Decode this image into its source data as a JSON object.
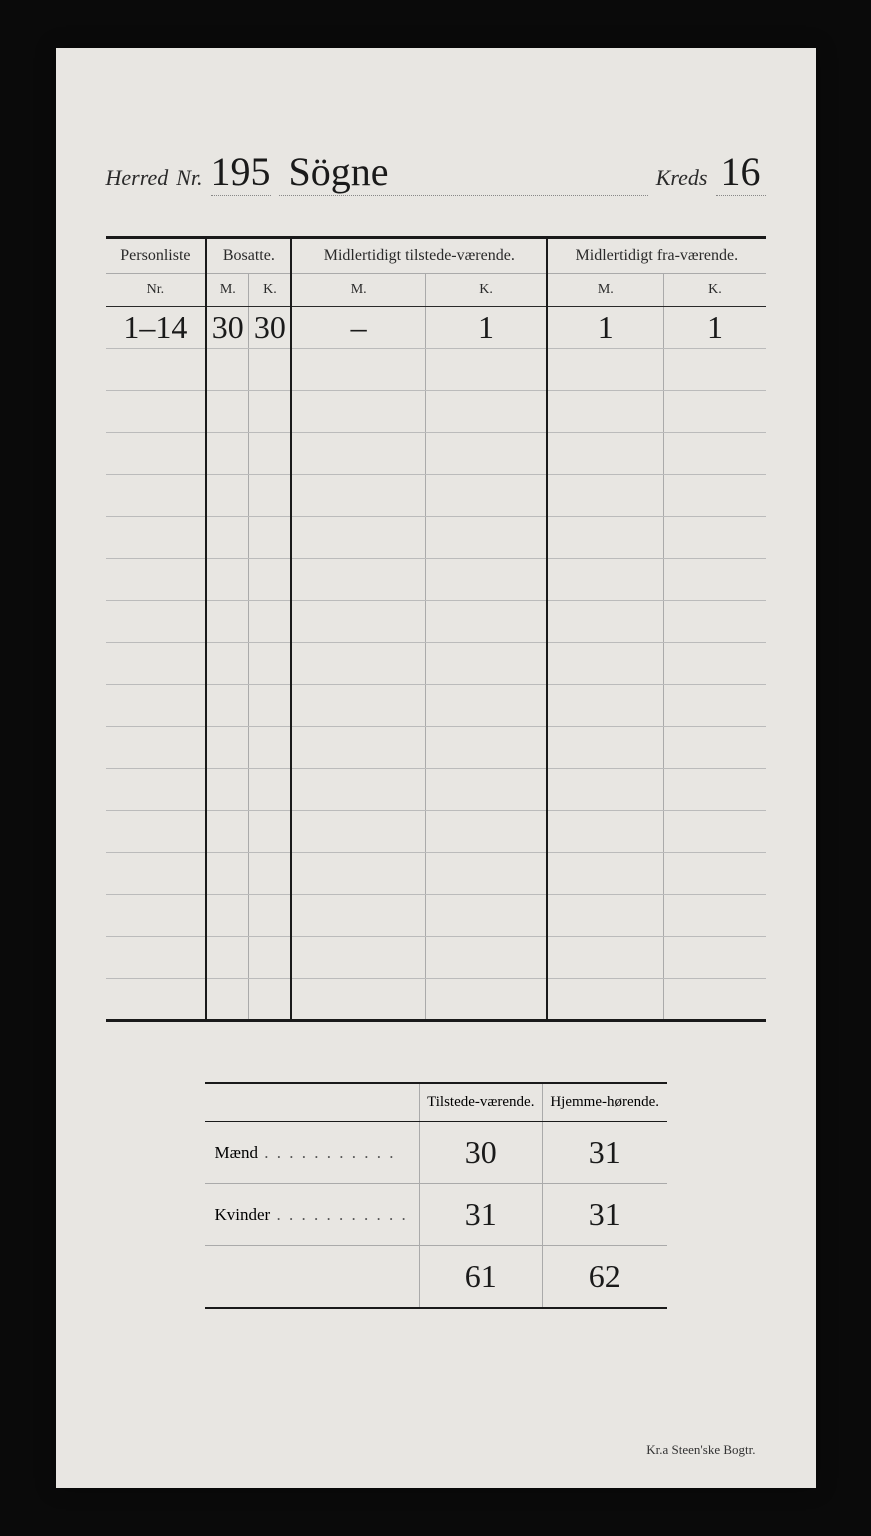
{
  "header": {
    "herred_label": "Herred",
    "nr_label": "Nr.",
    "herred_nr": "195",
    "herred_name": "Sögne",
    "kreds_label": "Kreds",
    "kreds_nr": "16"
  },
  "main_table": {
    "col_personliste": "Personliste",
    "col_nr": "Nr.",
    "col_bosatte": "Bosatte.",
    "col_midl_tilstede": "Midlertidigt tilstede-værende.",
    "col_midl_fra": "Midlertidigt fra-værende.",
    "col_m": "M.",
    "col_k": "K.",
    "rows": [
      {
        "nr": "1–14",
        "bos_m": "30",
        "bos_k": "30",
        "til_m": "–",
        "til_k": "1",
        "fra_m": "1",
        "fra_k": "1"
      }
    ],
    "empty_rows": 16
  },
  "summary": {
    "col_tilstede": "Tilstede-værende.",
    "col_hjemme": "Hjemme-hørende.",
    "row_maend": "Mænd",
    "row_kvinder": "Kvinder",
    "maend_tilstede": "30",
    "maend_hjemme": "31",
    "kvinder_tilstede": "31",
    "kvinder_hjemme": "31",
    "total_tilstede": "61",
    "total_hjemme": "62"
  },
  "footer": "Kr.a   Steen'ske Bogtr."
}
